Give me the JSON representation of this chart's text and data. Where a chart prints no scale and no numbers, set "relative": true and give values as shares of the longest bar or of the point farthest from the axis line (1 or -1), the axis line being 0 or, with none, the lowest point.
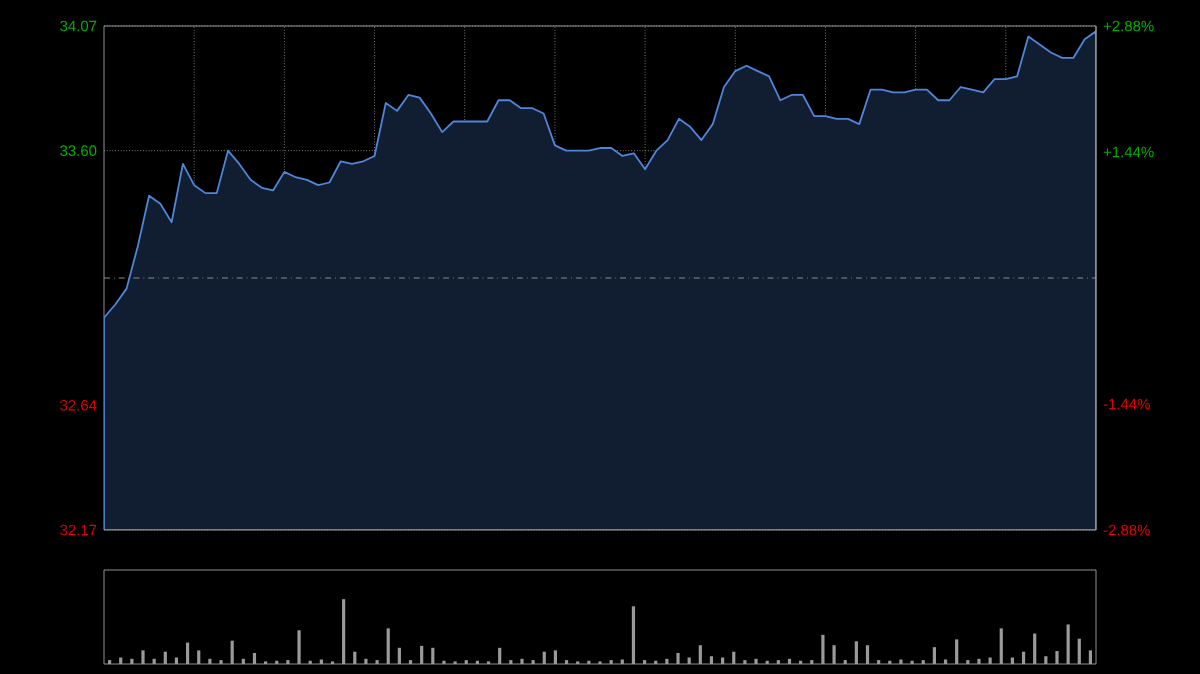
{
  "chart_data": [
    {
      "type": "area",
      "categories": [
        null,
        null,
        null,
        null,
        null,
        null,
        null,
        null,
        null,
        null,
        null,
        null,
        null,
        null,
        null,
        null,
        null,
        null,
        null,
        null,
        null,
        null,
        null,
        null,
        null,
        null,
        null,
        null,
        null,
        null,
        null,
        null,
        null,
        null,
        null,
        null,
        null,
        null,
        null,
        null,
        null,
        null,
        null,
        null,
        null,
        null,
        null,
        null,
        null,
        null,
        null,
        null,
        null,
        null,
        null,
        null,
        null,
        null,
        null,
        null,
        null,
        null,
        null,
        null,
        null,
        null,
        null,
        null,
        null,
        null,
        null,
        null,
        null,
        null,
        null,
        null,
        null,
        null,
        null,
        null,
        null,
        null,
        null,
        null,
        null,
        null,
        null,
        null,
        null
      ],
      "values": [
        32.97,
        33.02,
        33.08,
        33.24,
        33.43,
        33.4,
        33.33,
        33.55,
        33.47,
        33.44,
        33.44,
        33.6,
        33.55,
        33.49,
        33.46,
        33.45,
        33.52,
        33.5,
        33.49,
        33.47,
        33.48,
        33.56,
        33.55,
        33.56,
        33.58,
        33.78,
        33.75,
        33.81,
        33.8,
        33.74,
        33.67,
        33.71,
        33.71,
        33.71,
        33.71,
        33.79,
        33.79,
        33.76,
        33.76,
        33.74,
        33.62,
        33.6,
        33.6,
        33.6,
        33.61,
        33.61,
        33.58,
        33.59,
        33.53,
        33.6,
        33.64,
        33.72,
        33.69,
        33.64,
        33.7,
        33.84,
        33.9,
        33.92,
        33.9,
        33.88,
        33.79,
        33.81,
        33.81,
        33.73,
        33.73,
        33.72,
        33.72,
        33.7,
        33.83,
        33.83,
        33.82,
        33.82,
        33.83,
        33.83,
        33.79,
        33.79,
        33.84,
        33.83,
        33.82,
        33.87,
        33.87,
        33.88,
        34.03,
        34.0,
        33.97,
        33.95,
        33.95,
        34.02,
        34.05
      ],
      "color": "#4f86d9",
      "ylim": [
        32.17,
        34.07
      ],
      "yticks": [
        34.07,
        {
          "value": 33.6,
          "label": "33.60"
        },
        32.64,
        32.17
      ],
      "y2lim": [
        -2.88,
        2.88
      ],
      "y2ticks": [
        {
          "value": 2.88,
          "label": "+2.88%"
        },
        {
          "value": 1.44,
          "label": "+1.44%"
        },
        {
          "value": -1.44,
          "label": "-1.44%"
        },
        {
          "value": -2.88,
          "label": "-2.88%"
        }
      ],
      "ref_lines": [
        {
          "axis": "y",
          "value": 33.12,
          "color": "#8c8c8c",
          "line_style": "dashed"
        }
      ],
      "grid": true,
      "tick_labels": "y"
    },
    {
      "type": "bar",
      "relative": true,
      "categories": [
        null,
        null,
        null,
        null,
        null,
        null,
        null,
        null,
        null,
        null,
        null,
        null,
        null,
        null,
        null,
        null,
        null,
        null,
        null,
        null,
        null,
        null,
        null,
        null,
        null,
        null,
        null,
        null,
        null,
        null,
        null,
        null,
        null,
        null,
        null,
        null,
        null,
        null,
        null,
        null,
        null,
        null,
        null,
        null,
        null,
        null,
        null,
        null,
        null,
        null,
        null,
        null,
        null,
        null,
        null,
        null,
        null,
        null,
        null,
        null,
        null,
        null,
        null,
        null,
        null,
        null,
        null,
        null,
        null,
        null,
        null,
        null,
        null,
        null,
        null,
        null,
        null,
        null,
        null,
        null,
        null,
        null,
        null,
        null,
        null,
        null,
        null,
        null,
        null
      ],
      "values": [
        0.06,
        0.1,
        0.08,
        0.21,
        0.08,
        0.19,
        0.1,
        0.33,
        0.21,
        0.08,
        0.06,
        0.36,
        0.08,
        0.17,
        0.04,
        0.05,
        0.06,
        0.52,
        0.05,
        0.07,
        0.04,
        1,
        0.19,
        0.08,
        0.06,
        0.55,
        0.25,
        0.06,
        0.28,
        0.25,
        0.05,
        0.04,
        0.06,
        0.05,
        0.04,
        0.25,
        0.06,
        0.08,
        0.06,
        0.19,
        0.21,
        0.06,
        0.04,
        0.05,
        0.04,
        0.06,
        0.07,
        0.89,
        0.06,
        0.05,
        0.08,
        0.17,
        0.1,
        0.29,
        0.12,
        0.1,
        0.19,
        0.06,
        0.08,
        0.05,
        0.06,
        0.08,
        0.05,
        0.06,
        0.45,
        0.29,
        0.06,
        0.35,
        0.29,
        0.06,
        0.05,
        0.07,
        0.05,
        0.06,
        0.26,
        0.07,
        0.38,
        0.06,
        0.08,
        0.1,
        0.55,
        0.1,
        0.19,
        0.47,
        0.12,
        0.2,
        0.61,
        0.39,
        0.21
      ],
      "color": "#9a9a9a"
    }
  ]
}
